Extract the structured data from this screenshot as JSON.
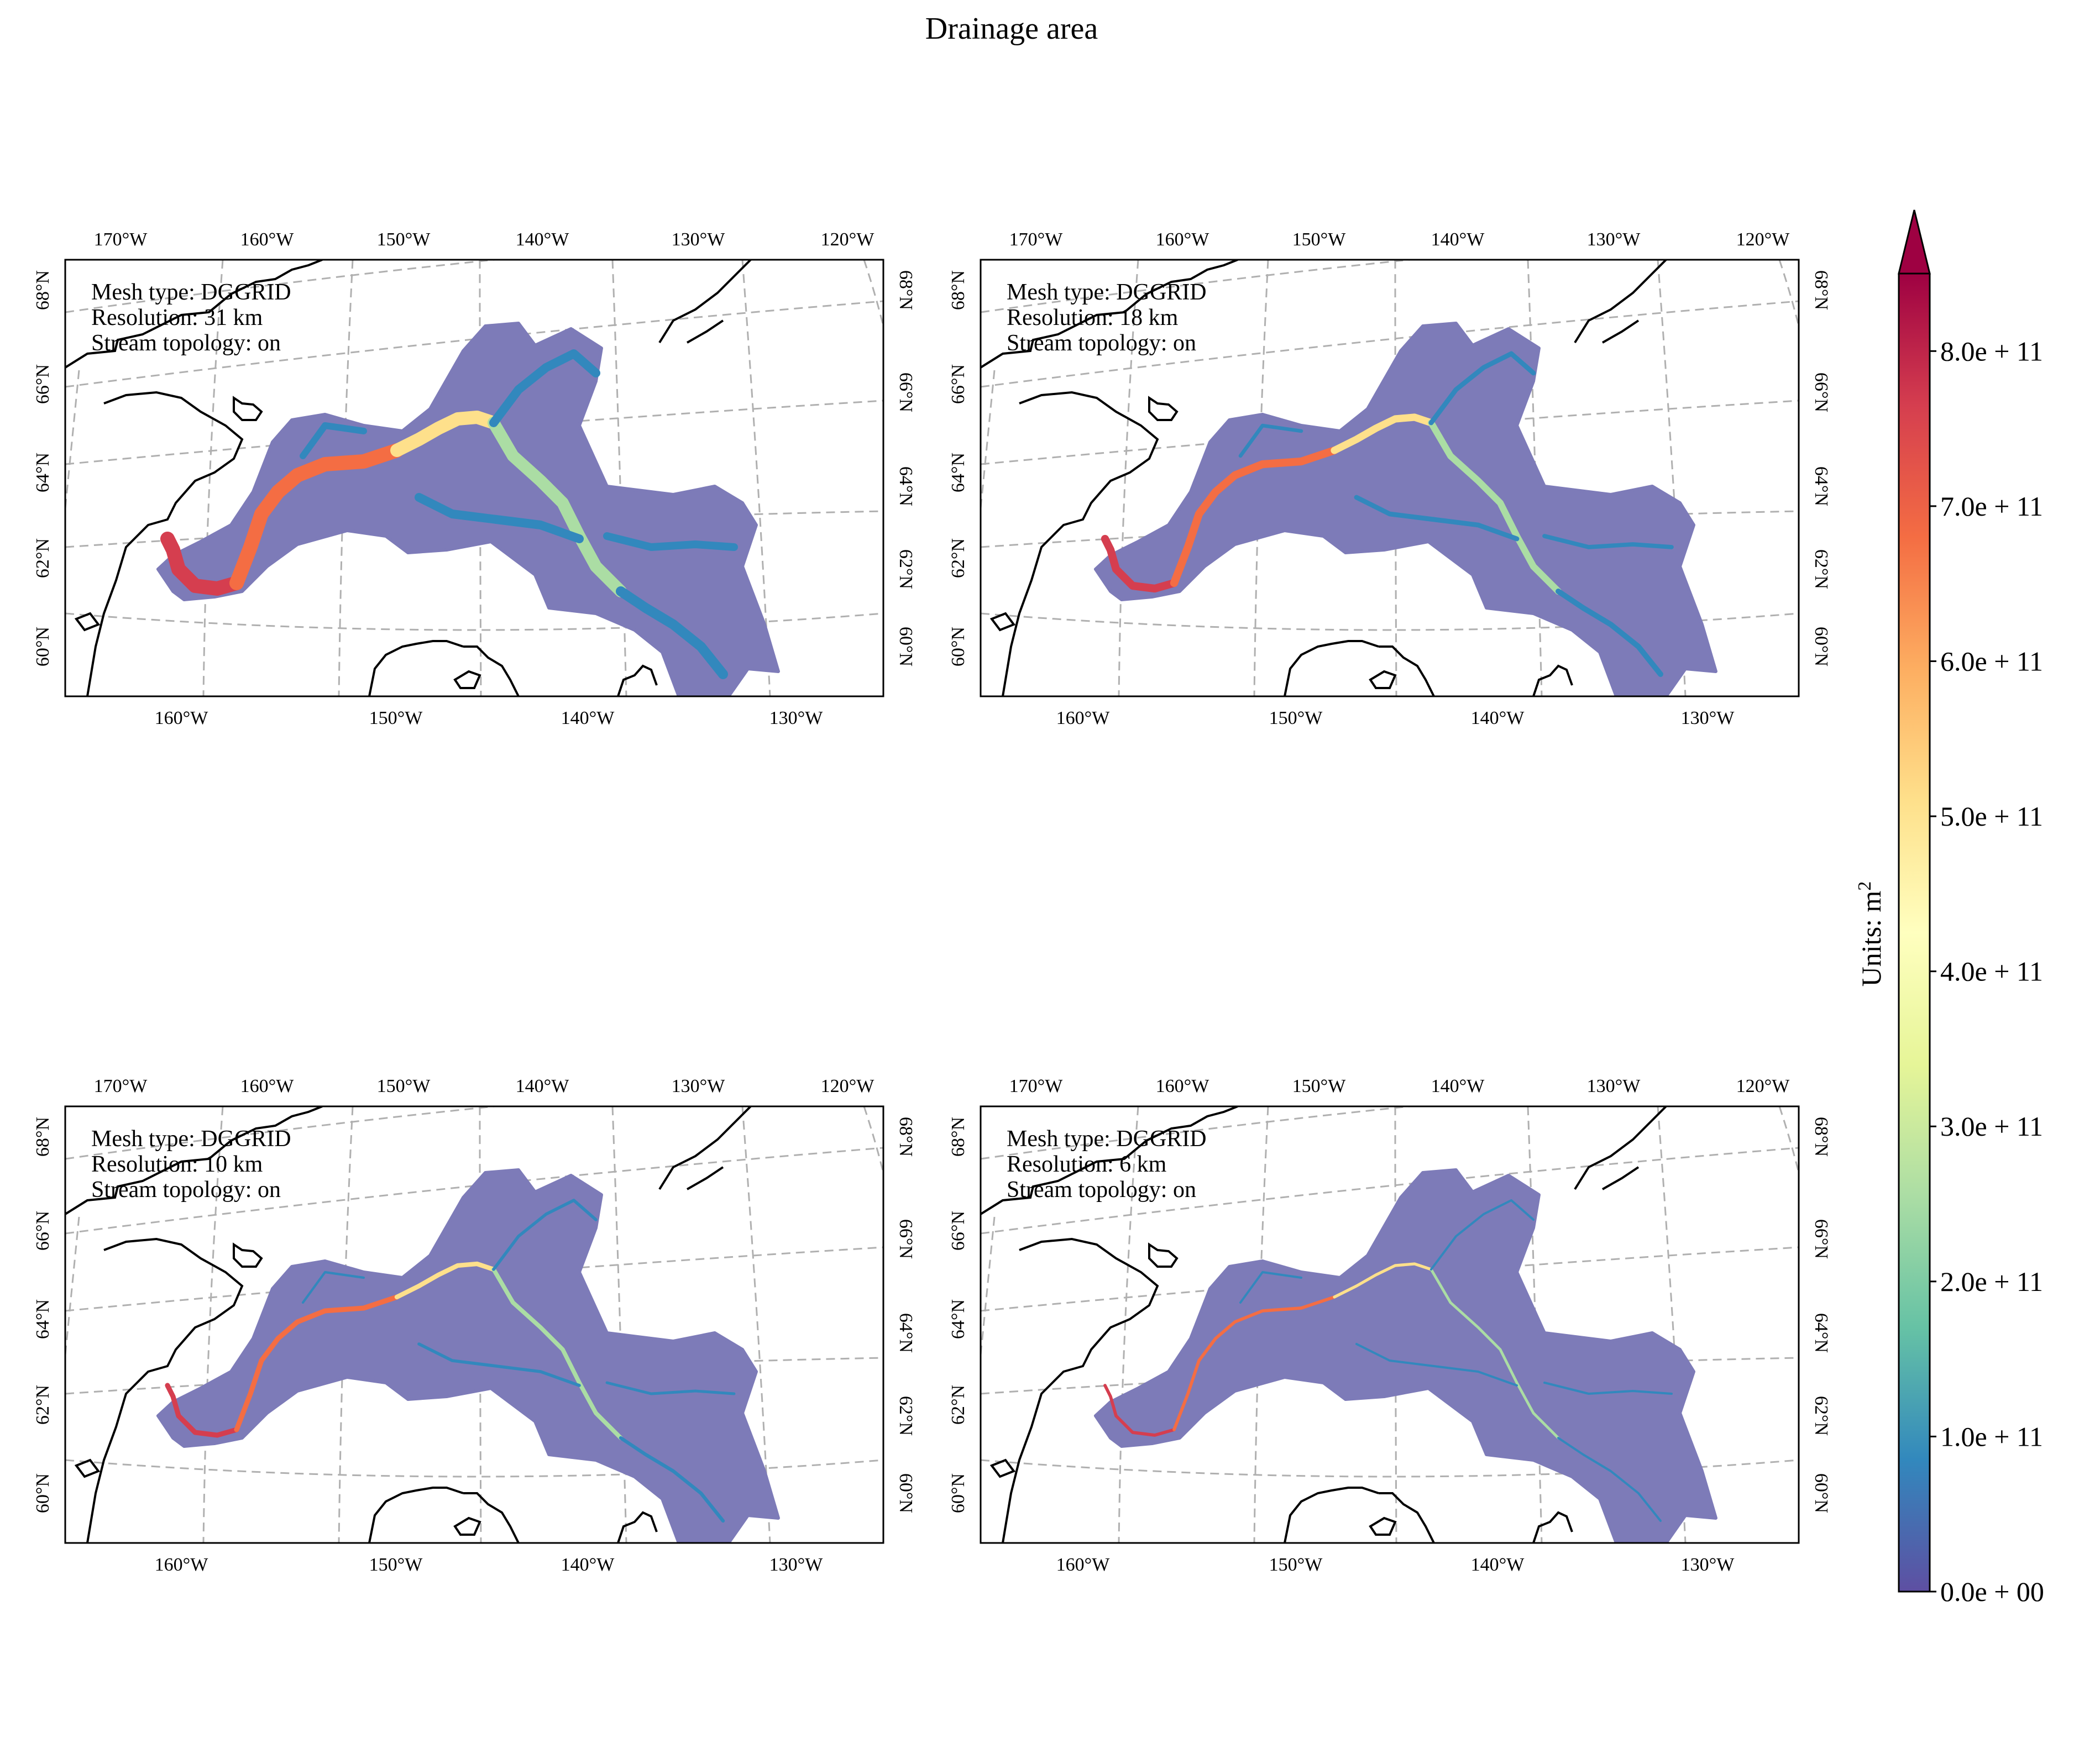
{
  "title": "Drainage area",
  "tick_labels": {
    "top_lon": [
      "170°W",
      "160°W",
      "150°W",
      "140°W",
      "130°W",
      "120°W"
    ],
    "bottom_lon": [
      "160°W",
      "150°W",
      "140°W",
      "130°W"
    ],
    "lat": [
      "60°N",
      "62°N",
      "64°N",
      "66°N",
      "68°N"
    ]
  },
  "panels": [
    {
      "mesh_type": "Mesh type: DGGRID",
      "resolution": "Resolution: 31 km",
      "stream_topology": "Stream topology: on"
    },
    {
      "mesh_type": "Mesh type: DGGRID",
      "resolution": "Resolution: 18 km",
      "stream_topology": "Stream topology: on"
    },
    {
      "mesh_type": "Mesh type: DGGRID",
      "resolution": "Resolution: 10 km",
      "stream_topology": "Stream topology: on"
    },
    {
      "mesh_type": "Mesh type: DGGRID",
      "resolution": "Resolution: 6 km",
      "stream_topology": "Stream topology: on"
    }
  ],
  "colorbar": {
    "label": "Units: m",
    "label_superscript": "2",
    "min": 0,
    "max": 850000000000,
    "extend": "max",
    "colormap": "Spectral_r",
    "ticks": [
      {
        "value": 0,
        "label": "0.0e + 00"
      },
      {
        "value": 100000000000,
        "label": "1.0e + 11"
      },
      {
        "value": 200000000000,
        "label": "2.0e + 11"
      },
      {
        "value": 300000000000,
        "label": "3.0e + 11"
      },
      {
        "value": 400000000000,
        "label": "4.0e + 11"
      },
      {
        "value": 500000000000,
        "label": "5.0e + 11"
      },
      {
        "value": 600000000000,
        "label": "6.0e + 11"
      },
      {
        "value": 700000000000,
        "label": "7.0e + 11"
      },
      {
        "value": 800000000000,
        "label": "8.0e + 11"
      }
    ]
  },
  "colors": {
    "basin_fill": "#7d7bb8",
    "graticule": "#b0b0b0",
    "coastline": "#000000"
  }
}
